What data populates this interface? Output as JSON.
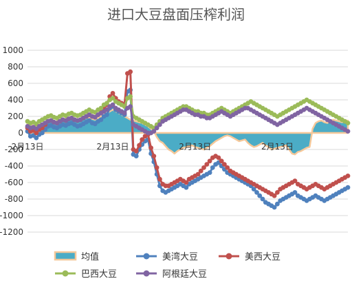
{
  "chart_data": {
    "type": "line",
    "title": "进口大豆盘面压榨利润",
    "xlabel": "",
    "ylabel": "",
    "ylim": [
      -1200,
      1000
    ],
    "yticks": [
      1000,
      800,
      600,
      400,
      200,
      0,
      -200,
      -400,
      -600,
      -800,
      -1000,
      -1200
    ],
    "grid": true,
    "legend_position": "bottom",
    "x_tick_labels": [
      "2月13日",
      "2月13日",
      "2月13日",
      "2月13日"
    ],
    "x_tick_indices": [
      0,
      29,
      57,
      85
    ],
    "series": [
      {
        "name": "均值",
        "kind": "area",
        "color": "#4bacc6",
        "border": "#f5c89a",
        "values": [
          120,
          100,
          90,
          80,
          100,
          110,
          130,
          150,
          140,
          130,
          140,
          150,
          160,
          170,
          180,
          170,
          160,
          150,
          160,
          170,
          180,
          190,
          170,
          160,
          180,
          200,
          220,
          240,
          260,
          280,
          260,
          240,
          220,
          200,
          180,
          160,
          150,
          140,
          130,
          120,
          100,
          80,
          50,
          20,
          -50,
          -100,
          -120,
          -160,
          -200,
          -220,
          -250,
          -220,
          -200,
          -180,
          -170,
          -160,
          -150,
          -170,
          -180,
          -190,
          -200,
          -180,
          -160,
          -130,
          -100,
          -80,
          -60,
          -40,
          -30,
          -40,
          -60,
          -80,
          -100,
          -90,
          -80,
          -120,
          -150,
          -170,
          -160,
          -140,
          -120,
          -150,
          -170,
          -200,
          -190,
          -180,
          -170,
          -160,
          -150,
          -200,
          -250,
          -260,
          -230,
          -220,
          -200,
          -180,
          -170,
          50,
          120,
          140,
          150,
          130,
          120,
          140,
          160,
          150,
          140,
          130,
          140,
          150
        ]
      },
      {
        "name": "美湾大豆",
        "kind": "line",
        "color": "#4f81bd",
        "values": [
          20,
          -40,
          -30,
          -60,
          -20,
          0,
          40,
          80,
          90,
          70,
          60,
          80,
          100,
          90,
          110,
          120,
          100,
          80,
          90,
          110,
          130,
          150,
          120,
          110,
          140,
          160,
          200,
          220,
          300,
          320,
          280,
          260,
          240,
          220,
          500,
          520,
          -260,
          -280,
          -200,
          -140,
          -100,
          -80,
          -250,
          -350,
          -500,
          -640,
          -700,
          -720,
          -700,
          -680,
          -660,
          -640,
          -620,
          -640,
          -660,
          -620,
          -600,
          -580,
          -560,
          -540,
          -520,
          -500,
          -480,
          -420,
          -380,
          -360,
          -400,
          -440,
          -480,
          -500,
          -520,
          -540,
          -560,
          -580,
          -600,
          -620,
          -640,
          -680,
          -720,
          -760,
          -800,
          -840,
          -860,
          -880,
          -900,
          -860,
          -820,
          -800,
          -780,
          -760,
          -740,
          -720,
          -760,
          -780,
          -800,
          -820,
          -800,
          -780,
          -760,
          -780,
          -800,
          -820,
          -800,
          -780,
          -760,
          -740,
          -720,
          -700,
          -680,
          -660
        ]
      },
      {
        "name": "美西大豆",
        "kind": "line",
        "color": "#c0504d",
        "values": [
          60,
          20,
          30,
          0,
          40,
          60,
          100,
          140,
          150,
          130,
          120,
          140,
          160,
          150,
          170,
          180,
          160,
          150,
          160,
          180,
          200,
          220,
          200,
          190,
          220,
          260,
          300,
          340,
          440,
          480,
          420,
          380,
          360,
          340,
          720,
          740,
          -200,
          -220,
          -150,
          -80,
          -40,
          -20,
          -180,
          -280,
          -420,
          -560,
          -620,
          -640,
          -640,
          -620,
          -600,
          -580,
          -560,
          -580,
          -600,
          -560,
          -540,
          -520,
          -500,
          -460,
          -420,
          -380,
          -340,
          -300,
          -280,
          -300,
          -340,
          -380,
          -420,
          -460,
          -480,
          -500,
          -520,
          -540,
          -560,
          -580,
          -600,
          -620,
          -640,
          -660,
          -680,
          -700,
          -720,
          -740,
          -760,
          -720,
          -680,
          -660,
          -640,
          -620,
          -600,
          -580,
          -620,
          -640,
          -660,
          -680,
          -660,
          -640,
          -620,
          -640,
          -660,
          -680,
          -660,
          -640,
          -620,
          -600,
          -580,
          -560,
          -540,
          -520
        ]
      },
      {
        "name": "巴西大豆",
        "kind": "line",
        "color": "#9bbb59",
        "values": [
          140,
          120,
          130,
          110,
          140,
          160,
          180,
          200,
          210,
          190,
          180,
          200,
          220,
          210,
          230,
          240,
          220,
          210,
          220,
          240,
          260,
          280,
          260,
          250,
          280,
          300,
          340,
          360,
          400,
          420,
          380,
          360,
          340,
          320,
          420,
          440,
          200,
          180,
          160,
          140,
          120,
          100,
          80,
          60,
          100,
          140,
          180,
          200,
          220,
          240,
          260,
          280,
          300,
          320,
          320,
          300,
          280,
          260,
          260,
          240,
          240,
          220,
          220,
          240,
          260,
          280,
          300,
          280,
          260,
          240,
          260,
          280,
          300,
          320,
          340,
          360,
          380,
          360,
          340,
          320,
          300,
          280,
          260,
          240,
          220,
          200,
          220,
          240,
          260,
          280,
          300,
          320,
          340,
          360,
          380,
          400,
          380,
          360,
          340,
          320,
          300,
          280,
          260,
          240,
          220,
          200,
          180,
          160,
          140,
          120
        ]
      },
      {
        "name": "阿根廷大豆",
        "kind": "line",
        "color": "#8064a2",
        "values": [
          80,
          60,
          70,
          50,
          80,
          100,
          120,
          140,
          150,
          130,
          120,
          140,
          160,
          150,
          170,
          180,
          160,
          150,
          160,
          180,
          200,
          220,
          200,
          190,
          220,
          240,
          260,
          280,
          320,
          340,
          300,
          280,
          260,
          240,
          300,
          320,
          100,
          80,
          60,
          40,
          20,
          0,
          0,
          20,
          60,
          100,
          140,
          160,
          180,
          200,
          220,
          240,
          260,
          280,
          280,
          260,
          240,
          220,
          220,
          200,
          200,
          180,
          180,
          200,
          220,
          240,
          260,
          240,
          220,
          200,
          220,
          240,
          260,
          280,
          300,
          300,
          280,
          260,
          240,
          220,
          200,
          180,
          160,
          140,
          120,
          100,
          120,
          140,
          160,
          180,
          200,
          220,
          240,
          260,
          280,
          300,
          280,
          260,
          240,
          220,
          200,
          180,
          160,
          140,
          120,
          100,
          80,
          60,
          40,
          20
        ]
      }
    ]
  }
}
